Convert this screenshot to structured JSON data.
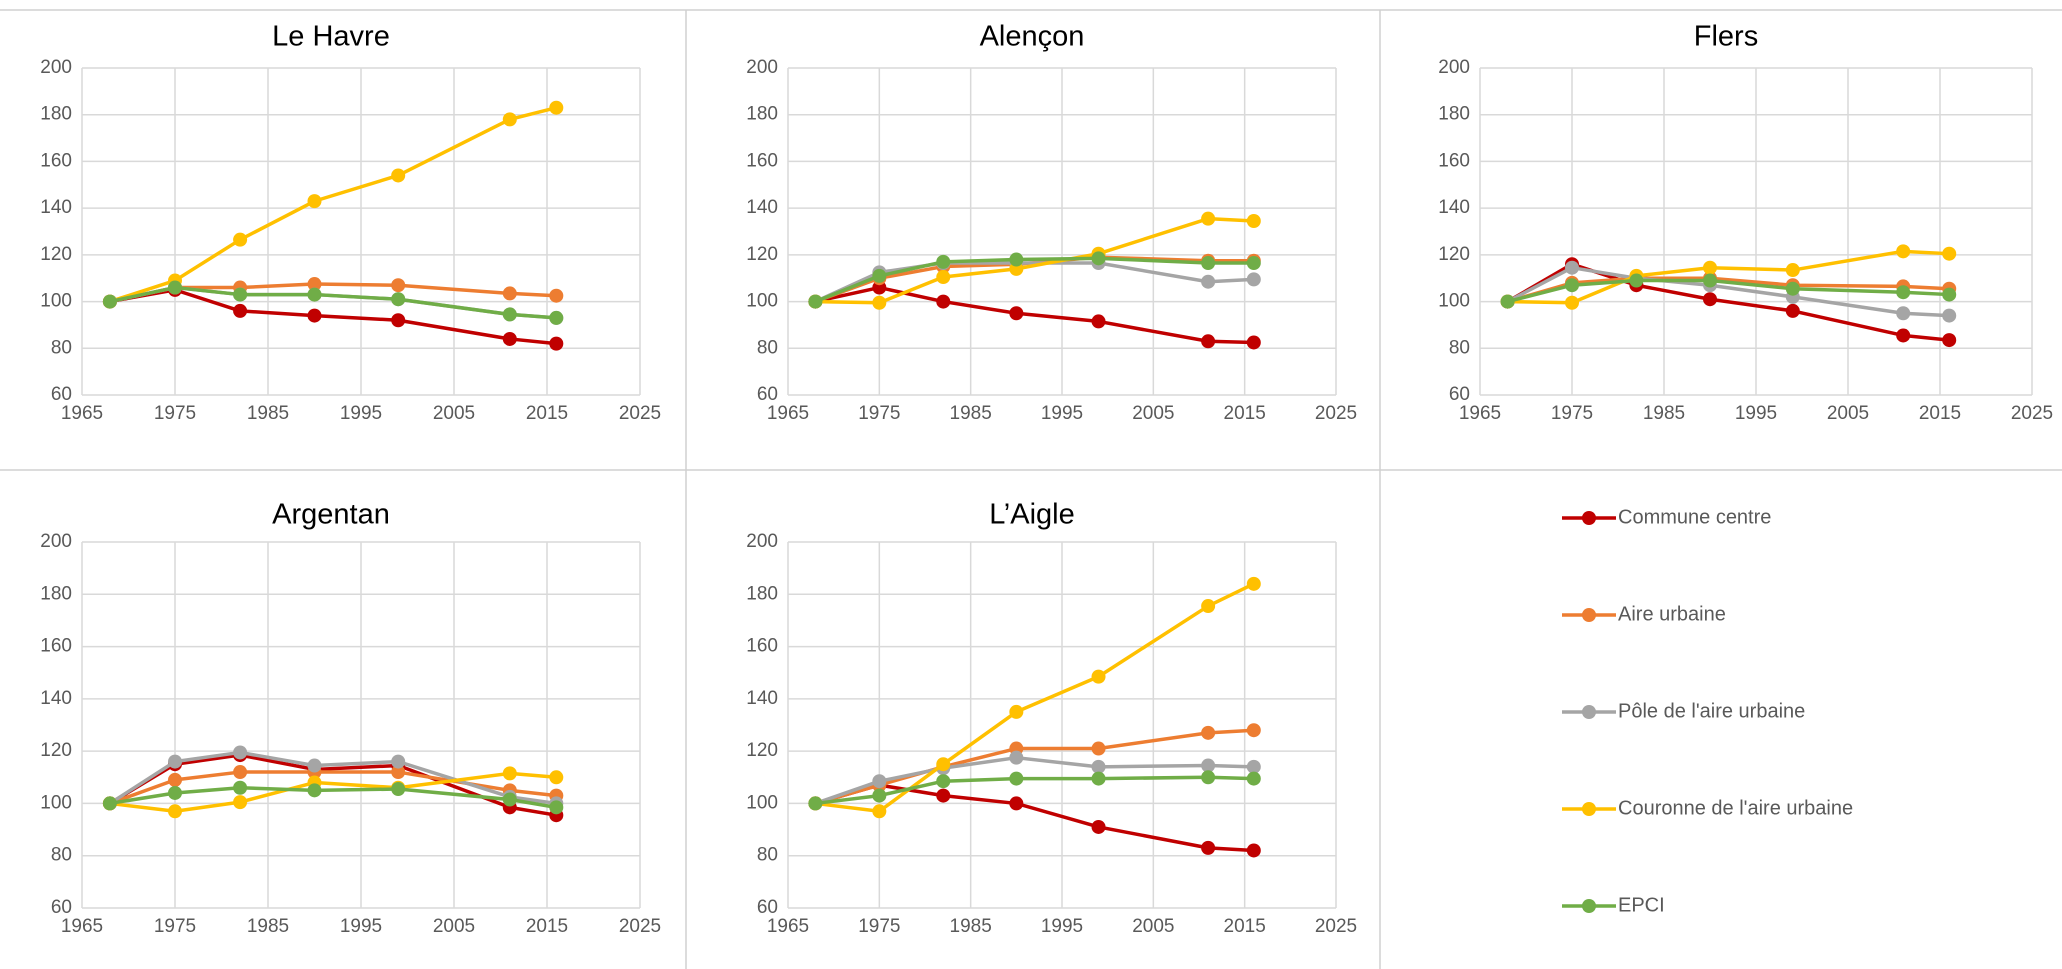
{
  "legend": {
    "entries": [
      {
        "name": "Commune centre",
        "color": "#c00000"
      },
      {
        "name": "Aire urbaine",
        "color": "#ed7d31"
      },
      {
        "name": "Pôle de l'aire urbaine",
        "color": "#a5a5a5"
      },
      {
        "name": "Couronne de l'aire urbaine",
        "color": "#ffc000"
      },
      {
        "name": "EPCI",
        "color": "#70ad47"
      }
    ]
  },
  "chart_data": [
    {
      "type": "line",
      "title": "Le Havre",
      "xlim": [
        1965,
        2025
      ],
      "ylim": [
        60,
        200
      ],
      "xticks": [
        1965,
        1975,
        1985,
        1995,
        2005,
        2015,
        2025
      ],
      "yticks": [
        60,
        80,
        100,
        120,
        140,
        160,
        180,
        200
      ],
      "grid": true,
      "x": [
        1968,
        1975,
        1982,
        1990,
        1999,
        2011,
        2016
      ],
      "series": [
        {
          "name": "Commune centre",
          "values": [
            100,
            105,
            96,
            94,
            92,
            84,
            82
          ]
        },
        {
          "name": "Aire urbaine",
          "values": [
            100,
            106,
            106,
            107.5,
            107,
            103.5,
            102.5
          ]
        },
        {
          "name": "Pôle de l'aire urbaine",
          "values": [
            100,
            106,
            103,
            103,
            101,
            94.5,
            93
          ]
        },
        {
          "name": "Couronne de l'aire urbaine",
          "values": [
            100,
            109,
            126.5,
            143,
            154,
            178,
            183
          ]
        },
        {
          "name": "EPCI",
          "values": [
            100,
            106,
            103,
            103,
            101,
            94.5,
            93
          ]
        }
      ]
    },
    {
      "type": "line",
      "title": "Alençon",
      "xlim": [
        1965,
        2025
      ],
      "ylim": [
        60,
        200
      ],
      "xticks": [
        1965,
        1975,
        1985,
        1995,
        2005,
        2015,
        2025
      ],
      "yticks": [
        60,
        80,
        100,
        120,
        140,
        160,
        180,
        200
      ],
      "grid": true,
      "x": [
        1968,
        1975,
        1982,
        1990,
        1999,
        2011,
        2016
      ],
      "series": [
        {
          "name": "Commune centre",
          "values": [
            100,
            106,
            100,
            95,
            91.5,
            83,
            82.5
          ]
        },
        {
          "name": "Aire urbaine",
          "values": [
            100,
            110,
            115,
            116,
            119,
            117.5,
            117.5
          ]
        },
        {
          "name": "Pôle de l'aire urbaine",
          "values": [
            100,
            112.5,
            116.5,
            116.5,
            116.5,
            108.5,
            109.5
          ]
        },
        {
          "name": "Couronne de l'aire urbaine",
          "values": [
            100,
            99.5,
            110.5,
            114,
            120.5,
            135.5,
            134.5
          ]
        },
        {
          "name": "EPCI",
          "values": [
            100,
            111,
            117,
            118,
            118.5,
            116.5,
            116.5
          ]
        }
      ]
    },
    {
      "type": "line",
      "title": "Flers",
      "xlim": [
        1965,
        2025
      ],
      "ylim": [
        60,
        200
      ],
      "xticks": [
        1965,
        1975,
        1985,
        1995,
        2005,
        2015,
        2025
      ],
      "yticks": [
        60,
        80,
        100,
        120,
        140,
        160,
        180,
        200
      ],
      "grid": true,
      "x": [
        1968,
        1975,
        1982,
        1990,
        1999,
        2011,
        2016
      ],
      "series": [
        {
          "name": "Commune centre",
          "values": [
            100,
            116,
            107,
            101,
            96,
            85.5,
            83.5
          ]
        },
        {
          "name": "Aire urbaine",
          "values": [
            100,
            108,
            110,
            110,
            107,
            106.5,
            105.5
          ]
        },
        {
          "name": "Pôle de l'aire urbaine",
          "values": [
            100,
            114.5,
            110,
            107,
            102,
            95,
            94
          ]
        },
        {
          "name": "Couronne de l'aire urbaine",
          "values": [
            100,
            99.5,
            111,
            114.5,
            113.5,
            121.5,
            120.5
          ]
        },
        {
          "name": "EPCI",
          "values": [
            100,
            107,
            109,
            109,
            105.5,
            104,
            103
          ]
        }
      ]
    },
    {
      "type": "line",
      "title": "Argentan",
      "xlim": [
        1965,
        2025
      ],
      "ylim": [
        60,
        200
      ],
      "xticks": [
        1965,
        1975,
        1985,
        1995,
        2005,
        2015,
        2025
      ],
      "yticks": [
        60,
        80,
        100,
        120,
        140,
        160,
        180,
        200
      ],
      "grid": true,
      "x": [
        1968,
        1975,
        1982,
        1990,
        1999,
        2011,
        2016
      ],
      "series": [
        {
          "name": "Commune centre",
          "values": [
            100,
            115,
            118.5,
            113,
            114.5,
            98.5,
            95.5
          ]
        },
        {
          "name": "Aire urbaine",
          "values": [
            100,
            109,
            112,
            112,
            112,
            105,
            103
          ]
        },
        {
          "name": "Pôle de l'aire urbaine",
          "values": [
            100,
            116,
            119.5,
            114.5,
            116,
            102.5,
            100
          ]
        },
        {
          "name": "Couronne de l'aire urbaine",
          "values": [
            100,
            97,
            100.5,
            108,
            106,
            111.5,
            110
          ]
        },
        {
          "name": "EPCI",
          "values": [
            100,
            104,
            106,
            105,
            105.5,
            101.5,
            98.5
          ]
        }
      ]
    },
    {
      "type": "line",
      "title": "L’Aigle",
      "xlim": [
        1965,
        2025
      ],
      "ylim": [
        60,
        200
      ],
      "xticks": [
        1965,
        1975,
        1985,
        1995,
        2005,
        2015,
        2025
      ],
      "yticks": [
        60,
        80,
        100,
        120,
        140,
        160,
        180,
        200
      ],
      "grid": true,
      "x": [
        1968,
        1975,
        1982,
        1990,
        1999,
        2011,
        2016
      ],
      "series": [
        {
          "name": "Commune centre",
          "values": [
            100,
            107,
            103,
            100,
            91,
            83,
            82
          ]
        },
        {
          "name": "Aire urbaine",
          "values": [
            100,
            107,
            114,
            121,
            121,
            127,
            128
          ]
        },
        {
          "name": "Pôle de l'aire urbaine",
          "values": [
            100,
            108.5,
            113.5,
            117.5,
            114,
            114.5,
            114
          ]
        },
        {
          "name": "Couronne de l'aire urbaine",
          "values": [
            100,
            97,
            115,
            135,
            148.5,
            175.5,
            184
          ]
        },
        {
          "name": "EPCI",
          "values": [
            100,
            103,
            108.5,
            109.5,
            109.5,
            110,
            109.5
          ]
        }
      ]
    }
  ]
}
